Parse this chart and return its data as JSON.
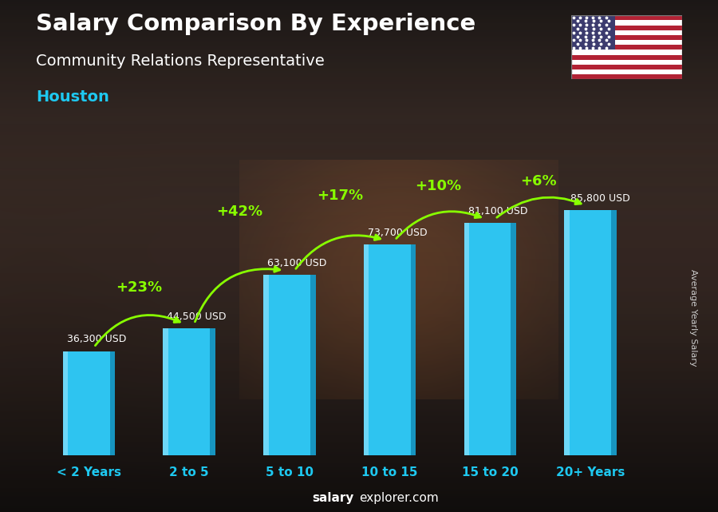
{
  "categories": [
    "< 2 Years",
    "2 to 5",
    "5 to 10",
    "10 to 15",
    "15 to 20",
    "20+ Years"
  ],
  "values": [
    36300,
    44500,
    63100,
    73700,
    81100,
    85800
  ],
  "value_labels": [
    "36,300 USD",
    "44,500 USD",
    "63,100 USD",
    "73,700 USD",
    "81,100 USD",
    "85,800 USD"
  ],
  "pct_labels": [
    "+23%",
    "+42%",
    "+17%",
    "+10%",
    "+6%"
  ],
  "title_line1": "Salary Comparison By Experience",
  "title_line2": "Community Relations Representative",
  "city": "Houston",
  "ylabel": "Average Yearly Salary",
  "bar_face_color": "#2EC4F0",
  "bar_light_color": "#7EDDFA",
  "bar_dark_color": "#1590BB",
  "green_color": "#88FF00",
  "white_color": "#FFFFFF",
  "cyan_color": "#1EC8F0",
  "bg_dark": "#111122",
  "footer_salary": "salary",
  "footer_rest": "explorer.com",
  "ylabel_color": "#CCCCCC",
  "ylim_max": 100000,
  "bar_width": 0.52,
  "xlim_min": -0.6,
  "xlim_max": 5.7
}
